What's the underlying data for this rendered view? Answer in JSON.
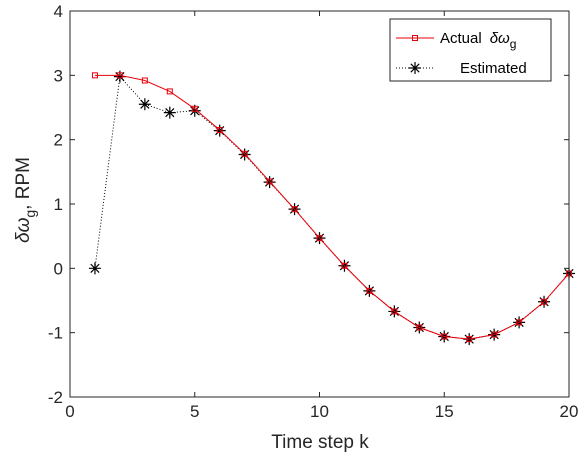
{
  "chart_data": {
    "type": "line",
    "title": "",
    "xlabel": "Time step k",
    "ylabel": {
      "base": "δω",
      "sub": "g",
      "suffix": ", RPM"
    },
    "xlim": [
      0,
      20
    ],
    "ylim": [
      -2,
      4
    ],
    "xticks": [
      "0",
      "5",
      "10",
      "15",
      "20"
    ],
    "yticks": [
      "-2",
      "-1",
      "0",
      "1",
      "2",
      "3",
      "4"
    ],
    "grid": false,
    "legend_position": "top-right",
    "series": [
      {
        "name": "Actual",
        "name_math": "δω",
        "name_sub": "g",
        "color": "#e8000b",
        "line_style": "solid",
        "marker": "square",
        "x": [
          1,
          2,
          3,
          4,
          5,
          6,
          7,
          8,
          9,
          10,
          11,
          12,
          13,
          14,
          15,
          16,
          17,
          18,
          19,
          20
        ],
        "y": [
          3.0,
          3.0,
          2.92,
          2.75,
          2.48,
          2.15,
          1.78,
          1.35,
          0.92,
          0.47,
          0.04,
          -0.35,
          -0.67,
          -0.92,
          -1.06,
          -1.1,
          -1.03,
          -0.84,
          -0.52,
          -0.08
        ]
      },
      {
        "name": "Estimated",
        "color": "#000000",
        "line_style": "dotted",
        "marker": "asterisk",
        "x": [
          1,
          2,
          3,
          4,
          5,
          6,
          7,
          8,
          9,
          10,
          11,
          12,
          13,
          14,
          15,
          16,
          17,
          18,
          19,
          20
        ],
        "y": [
          0.0,
          2.98,
          2.55,
          2.42,
          2.45,
          2.14,
          1.77,
          1.34,
          0.92,
          0.47,
          0.04,
          -0.35,
          -0.67,
          -0.92,
          -1.06,
          -1.1,
          -1.03,
          -0.84,
          -0.52,
          -0.08
        ]
      }
    ]
  }
}
